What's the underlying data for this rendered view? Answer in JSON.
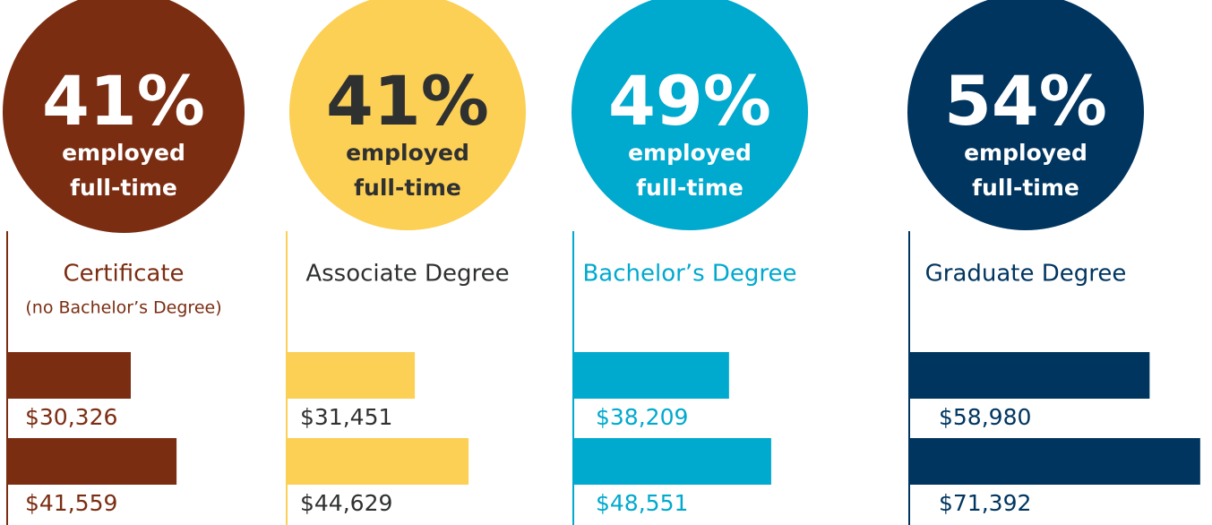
{
  "chart_data": [
    {
      "type": "bar",
      "percent": 41,
      "percent_label": "41%",
      "caption": [
        "employed",
        "full-time"
      ],
      "title": "Certificate",
      "subtitle": "(no Bachelor’s Degree)",
      "values": [
        30326,
        41559
      ],
      "value_labels": [
        "$30,326",
        "$41,559"
      ],
      "color": "#7b2d12",
      "text_color": "#7b2d12",
      "circle_text_color": "#ffffff"
    },
    {
      "type": "bar",
      "percent": 41,
      "percent_label": "41%",
      "caption": [
        "employed",
        "full-time"
      ],
      "title": "Associate Degree",
      "values": [
        31451,
        44629
      ],
      "value_labels": [
        "$31,451",
        "$44,629"
      ],
      "color": "#fccf55",
      "text_color": "#2f3030",
      "circle_text_color": "#2f3030"
    },
    {
      "type": "bar",
      "percent": 49,
      "percent_label": "49%",
      "caption": [
        "employed",
        "full-time"
      ],
      "title": "Bachelor’s Degree",
      "values": [
        38209,
        48551
      ],
      "value_labels": [
        "$38,209",
        "$48,551"
      ],
      "color": "#00a9ce",
      "text_color": "#00a9ce",
      "circle_text_color": "#ffffff"
    },
    {
      "type": "bar",
      "percent": 54,
      "percent_label": "54%",
      "caption": [
        "employed",
        "full-time"
      ],
      "title": "Graduate Degree",
      "values": [
        58980,
        71392
      ],
      "value_labels": [
        "$58,980",
        "$71,392"
      ],
      "color": "#003560",
      "text_color": "#003560",
      "circle_text_color": "#ffffff"
    }
  ]
}
